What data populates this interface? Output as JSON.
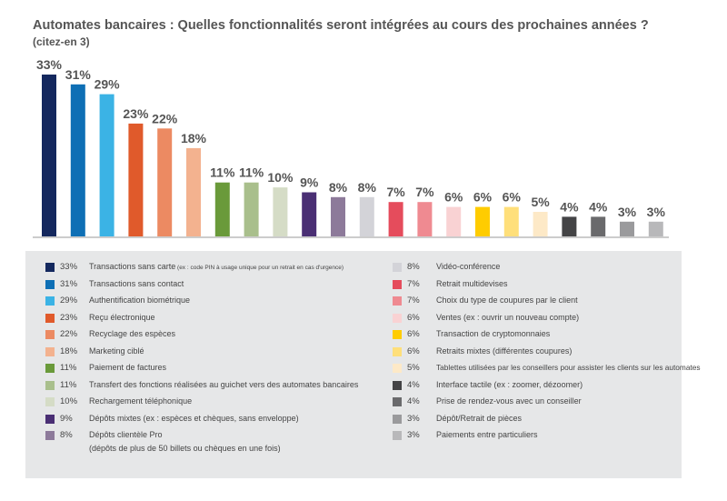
{
  "title": "Automates bancaires : Quelles fonctionnalités seront intégrées au cours des prochaines années ?",
  "subtitle": "(citez-en 3)",
  "chart_data": {
    "type": "bar",
    "title": "Automates bancaires : Quelles fonctionnalités seront intégrées au cours des prochaines années ?",
    "subtitle": "(citez-en 3)",
    "unit": "%",
    "ylim": [
      0,
      33
    ],
    "categories": [
      "Transactions sans carte",
      "Transactions sans contact",
      "Authentification biométrique",
      "Reçu électronique",
      "Recyclage des espèces",
      "Marketing ciblé",
      "Paiement de factures",
      "Transfert des fonctions réalisées au guichet vers des automates bancaires",
      "Rechargement téléphonique",
      "Dépôts mixtes (ex : espèces et chèques, sans enveloppe)",
      "Dépôts clientèle Pro",
      "Vidéo-conférence",
      "Retrait multidevises",
      "Choix du type de coupures par le client",
      "Ventes (ex : ouvrir un nouveau compte)",
      "Transaction de cryptomonnaies",
      "Retraits mixtes (différentes coupures)",
      "Tablettes utilisées par les conseillers pour assister les clients sur les automates",
      "Interface tactile (ex : zoomer, dézoomer)",
      "Prise de rendez-vous avec un conseiller",
      "Dépôt/Retrait de pièces",
      "Paiements entre particuliers"
    ],
    "values": [
      33,
      31,
      29,
      23,
      22,
      18,
      11,
      11,
      10,
      9,
      8,
      8,
      7,
      7,
      6,
      6,
      6,
      5,
      4,
      4,
      3,
      3
    ],
    "value_labels": [
      "33%",
      "31%",
      "29%",
      "23%",
      "22%",
      "18%",
      "11%",
      "11%",
      "10%",
      "9%",
      "8%",
      "8%",
      "7%",
      "7%",
      "6%",
      "6%",
      "6%",
      "5%",
      "4%",
      "4%",
      "3%",
      "3%"
    ],
    "colors": [
      "#14285e",
      "#0e6fb5",
      "#3bb3e5",
      "#e05a2b",
      "#ec8a62",
      "#f3b28f",
      "#6a9a3a",
      "#a9bf8c",
      "#d5dcc6",
      "#4a2f74",
      "#8d7a9a",
      "#d3d3d8",
      "#e54c5c",
      "#ef8a91",
      "#f9d2d3",
      "#ffcc00",
      "#ffdf7a",
      "#fde9c7",
      "#444446",
      "#6a6a6c",
      "#9a9a9c",
      "#b8b8ba"
    ]
  },
  "legend": [
    {
      "pct": "33%",
      "label": "Transactions sans carte",
      "note": "(ex : code PIN à usage unique pour un retrait en cas d'urgence)"
    },
    {
      "pct": "31%",
      "label": "Transactions sans contact"
    },
    {
      "pct": "29%",
      "label": "Authentification biométrique"
    },
    {
      "pct": "23%",
      "label": "Reçu électronique"
    },
    {
      "pct": "22%",
      "label": "Recyclage des espèces"
    },
    {
      "pct": "18%",
      "label": "Marketing ciblé"
    },
    {
      "pct": "11%",
      "label": "Paiement de factures"
    },
    {
      "pct": "11%",
      "label": "Transfert des fonctions réalisées au guichet vers des automates bancaires"
    },
    {
      "pct": "10%",
      "label": "Rechargement téléphonique"
    },
    {
      "pct": "9%",
      "label": "Dépôts mixtes (ex : espèces et chèques, sans enveloppe)"
    },
    {
      "pct": "8%",
      "label": "Dépôts clientèle Pro",
      "line2": "(dépôts de plus de 50 billets ou chèques en une fois)"
    },
    {
      "pct": "8%",
      "label": "Vidéo-conférence"
    },
    {
      "pct": "7%",
      "label": "Retrait multidevises"
    },
    {
      "pct": "7%",
      "label": "Choix du type de coupures par le client"
    },
    {
      "pct": "6%",
      "label": "Ventes (ex : ouvrir un nouveau compte)"
    },
    {
      "pct": "6%",
      "label": "Transaction de cryptomonnaies"
    },
    {
      "pct": "6%",
      "label": "Retraits mixtes (différentes coupures)"
    },
    {
      "pct": "5%",
      "label": "Tablettes utilisées par les conseillers pour assister les clients sur les automates"
    },
    {
      "pct": "4%",
      "label": "Interface tactile (ex : zoomer, dézoomer)"
    },
    {
      "pct": "4%",
      "label": "Prise de rendez-vous avec un conseiller"
    },
    {
      "pct": "3%",
      "label": "Dépôt/Retrait de pièces"
    },
    {
      "pct": "3%",
      "label": "Paiements entre particuliers"
    }
  ]
}
